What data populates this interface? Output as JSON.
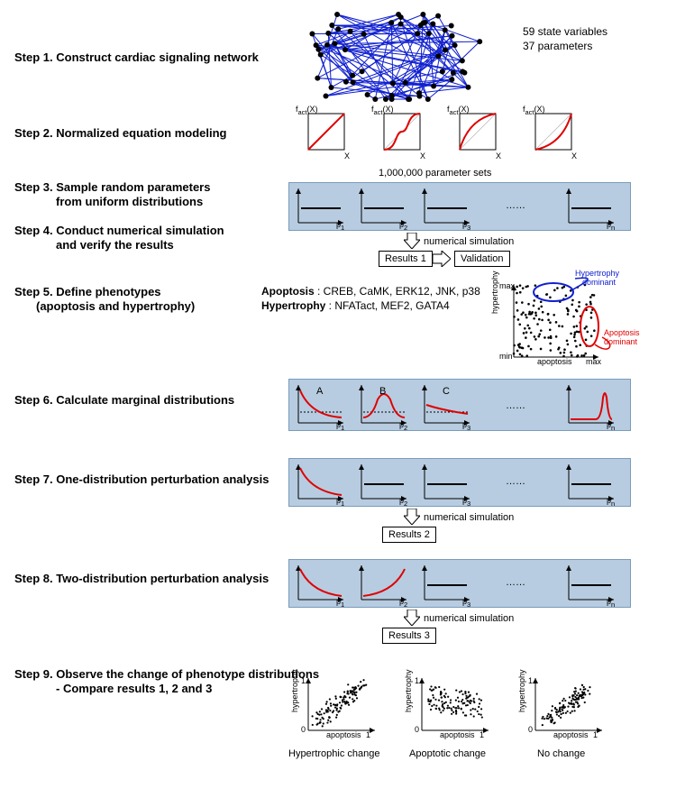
{
  "steps": {
    "s1": "Step 1. Construct cardiac signaling network",
    "s2": "Step 2. Normalized equation modeling",
    "s3a": "Step 3. Sample random parameters",
    "s3b": "from uniform distributions",
    "s4a": "Step 4. Conduct numerical simulation",
    "s4b": "and verify the results",
    "s5a": "Step 5. Define phenotypes",
    "s5b": "(apoptosis and hypertrophy)",
    "s6": "Step 6. Calculate marginal distributions",
    "s7": "Step 7. One-distribution perturbation analysis",
    "s8": "Step 8. Two-distribution perturbation analysis",
    "s9a": "Step 9. Observe the change of phenotype distributions",
    "s9b": "- Compare results 1, 2 and 3"
  },
  "network_stats": {
    "vars": "59 state variables",
    "params": "37 parameters",
    "node_color": "#000000",
    "edge_color": "#1020d0",
    "node_count": 59
  },
  "fact_label": "f",
  "fact_sub": "act",
  "fact_arg": "(X)",
  "x_label": "X",
  "curve_color": "#e00000",
  "diag_color": "#bbbbbb",
  "paramsets_label": "1,000,000 parameter sets",
  "p_labels": [
    "p",
    "p",
    "p",
    "p"
  ],
  "p_subs": [
    "1",
    "2",
    "3",
    "n"
  ],
  "ellipsis": "……",
  "numsim": "numerical simulation",
  "results1": "Results 1",
  "validation": "Validation",
  "results2": "Results 2",
  "results3": "Results 3",
  "phenotypes": {
    "apop_label": "Apoptosis",
    "apop_list": " : CREB, CaMK, ERK12, JNK, p38",
    "hyp_label": "Hypertrophy",
    "hyp_list": " : NFATact, MEF2, GATA4",
    "hyp_dom": "Hypertrophy",
    "hyp_dom2": "dominant",
    "apop_dom": "Apoptosis",
    "apop_dom2": "dominant",
    "hyp_dom_color": "#1020d0",
    "apop_dom_color": "#e00000",
    "y_axis": "hypertrophy",
    "x_axis": "apoptosis",
    "min": "min",
    "max": "max"
  },
  "marginal": {
    "letters": [
      "A",
      "B",
      "C"
    ]
  },
  "final": {
    "y_axis": "hypertrophy",
    "x_axis": "apoptosis",
    "zero": "0",
    "one": "1",
    "captions": [
      "Hypertrophic change",
      "Apoptotic change",
      "No change"
    ]
  },
  "panel_bg": "#b7cce0",
  "panel_border": "#7a9bbb"
}
